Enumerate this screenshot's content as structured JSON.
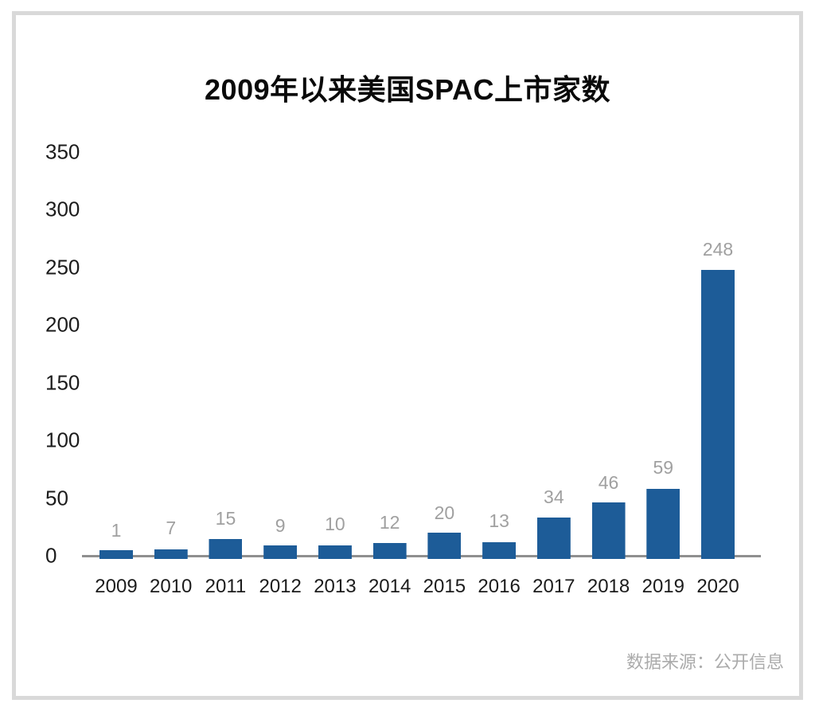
{
  "title": "2009年以来美国SPAC上市家数",
  "source_note": "数据来源：公开信息",
  "colors": {
    "bar": "#1d5c98",
    "axis_line": "#8f8f8f",
    "value_label": "#a0a0a0",
    "tick_label": "#1c1c1c",
    "title_text": "#0a0a0a",
    "frame_border": "#d9d9d9",
    "background": "#ffffff"
  },
  "chart_data": {
    "type": "bar",
    "title": "2009年以来美国SPAC上市家数",
    "categories": [
      "2009",
      "2010",
      "2011",
      "2012",
      "2013",
      "2014",
      "2015",
      "2016",
      "2017",
      "2018",
      "2019",
      "2020"
    ],
    "values": [
      1,
      7,
      15,
      9,
      10,
      12,
      20,
      13,
      34,
      46,
      59,
      248
    ],
    "value_labels": [
      "1",
      "7",
      "15",
      "9",
      "10",
      "12",
      "20",
      "13",
      "34",
      "46",
      "59",
      "248"
    ],
    "xlabel": "",
    "ylabel": "",
    "ylim": [
      0,
      350
    ],
    "yticks": [
      0,
      50,
      100,
      150,
      200,
      250,
      300,
      350
    ],
    "grid": false,
    "legend": "none",
    "bar_color": "#1d5c98",
    "data_label_position": "above-bar",
    "source": "数据来源：公开信息"
  }
}
